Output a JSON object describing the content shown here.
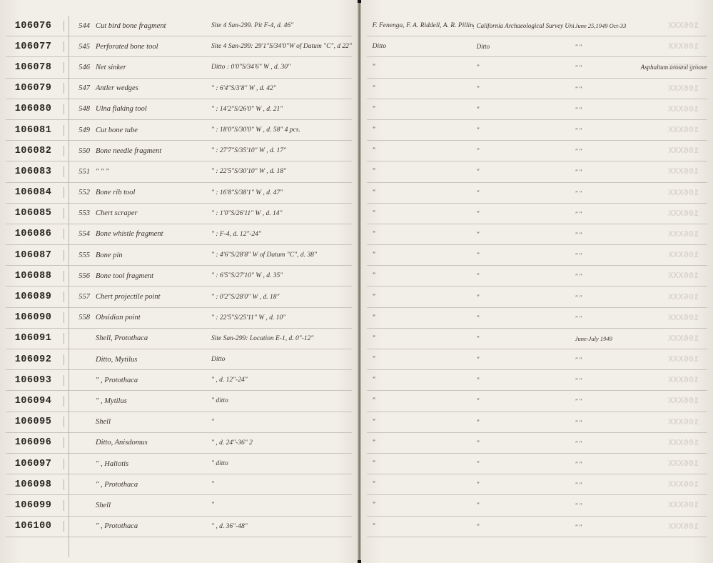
{
  "rows": [
    {
      "id": "106076",
      "num": "544",
      "desc": "Cut bird bone fragment",
      "loc": "Site 4 San-299. Pit F-4, d. 46\"",
      "rc1": "F. Fenenga, F. A. Riddell, A. R. Pilling, et al",
      "rc2": "California Archaeological Survey University Appropriation",
      "rc3": "June 25,1949 Oct-33",
      "rc4": "",
      "ghost": "106XXX"
    },
    {
      "id": "106077",
      "num": "545",
      "desc": "Perforated bone tool",
      "loc": "Site 4 San-299: 29'1\"S/34'0\"W of Datum \"C\", d 22\"",
      "rc1": "Ditto",
      "rc2": "Ditto",
      "rc3": "\"  \"",
      "rc4": "",
      "ghost": "106XXX"
    },
    {
      "id": "106078",
      "num": "546",
      "desc": "Net sinker",
      "loc": "Ditto  : 0'0\"S/34'6\" W    ,  d. 30\"",
      "rc1": "\"",
      "rc2": "\"",
      "rc3": "\"  \"",
      "rc4": "Asphaltum around groove",
      "ghost": "106XXX"
    },
    {
      "id": "106079",
      "num": "547",
      "desc": "Antler wedges",
      "loc": "\"   : 6'4\"S/3'8\" W     ,  d. 42\"",
      "rc1": "\"",
      "rc2": "\"",
      "rc3": "\"  \"",
      "rc4": "",
      "ghost": "106XXX"
    },
    {
      "id": "106080",
      "num": "548",
      "desc": "Ulna flaking tool",
      "loc": "\"   : 14'2\"S/26'0\" W    ,  d. 21\"",
      "rc1": "\"",
      "rc2": "\"",
      "rc3": "\"  \"",
      "rc4": "",
      "ghost": "106XXX"
    },
    {
      "id": "106081",
      "num": "549",
      "desc": "Cut bone tube",
      "loc": "\"   : 18'0\"S/30'0\" W    ,  d. 58\"  4 pcs.",
      "rc1": "\"",
      "rc2": "\"",
      "rc3": "\"  \"",
      "rc4": "",
      "ghost": "106XXX"
    },
    {
      "id": "106082",
      "num": "550",
      "desc": "Bone needle fragment",
      "loc": "\"   : 27'7\"S/35'10\" W   ,  d. 17\"",
      "rc1": "\"",
      "rc2": "\"",
      "rc3": "\"  \"",
      "rc4": "",
      "ghost": "106XXX"
    },
    {
      "id": "106083",
      "num": "551",
      "desc": "\"   \"   \"",
      "loc": "\"   : 22'5\"S/30'10\" W   ,  d. 18\"",
      "rc1": "\"",
      "rc2": "\"",
      "rc3": "\"  \"",
      "rc4": "",
      "ghost": "106XXX"
    },
    {
      "id": "106084",
      "num": "552",
      "desc": "Bone rib tool",
      "loc": "\"   : 16'8\"S/38'1\" W    ,  d. 47\"",
      "rc1": "\"",
      "rc2": "\"",
      "rc3": "\"  \"",
      "rc4": "",
      "ghost": "106XXX"
    },
    {
      "id": "106085",
      "num": "553",
      "desc": "Chert scraper",
      "loc": "\"   : 1'0\"S/26'11\" W    ,  d. 14\"",
      "rc1": "\"",
      "rc2": "\"",
      "rc3": "\"  \"",
      "rc4": "",
      "ghost": "106XXX"
    },
    {
      "id": "106086",
      "num": "554",
      "desc": "Bone whistle fragment",
      "loc": "\"   : F-4, d. 12\"-24\"",
      "rc1": "\"",
      "rc2": "\"",
      "rc3": "\"  \"",
      "rc4": "",
      "ghost": "106XXX"
    },
    {
      "id": "106087",
      "num": "555",
      "desc": "Bone pin",
      "loc": "\"   : 4'6\"S/28'8\" W of Datum \"C\", d. 38\"",
      "rc1": "\"",
      "rc2": "\"",
      "rc3": "\"  \"",
      "rc4": "",
      "ghost": "106XXX"
    },
    {
      "id": "106088",
      "num": "556",
      "desc": "Bone tool fragment",
      "loc": "\"   : 6'5\"S/27'10\" W    ,  d. 35\"",
      "rc1": "\"",
      "rc2": "\"",
      "rc3": "\"  \"",
      "rc4": "",
      "ghost": "106XXX"
    },
    {
      "id": "106089",
      "num": "557",
      "desc": "Chert projectile point",
      "loc": "\"   : 0'2\"S/28'0\" W    ,  d. 18\"",
      "rc1": "\"",
      "rc2": "\"",
      "rc3": "\"  \"",
      "rc4": "",
      "ghost": "106XXX"
    },
    {
      "id": "106090",
      "num": "558",
      "desc": "Obsidian point",
      "loc": "\"   : 22'5\"S/25'11\" W   ,  d. 10\"",
      "rc1": "\"",
      "rc2": "\"",
      "rc3": "\"  \"",
      "rc4": "",
      "ghost": "106XXX"
    },
    {
      "id": "106091",
      "num": "",
      "desc": "Shell, Protothaca",
      "loc": "Site San-299: Location E-1, d. 0\"-12\"",
      "rc1": "\"",
      "rc2": "\"",
      "rc3": "June-July 1949",
      "rc4": "",
      "ghost": "106XXX"
    },
    {
      "id": "106092",
      "num": "",
      "desc": "Ditto, Mytilus",
      "loc": "Ditto",
      "rc1": "\"",
      "rc2": "\"",
      "rc3": "\"  \"",
      "rc4": "",
      "ghost": "106XXX"
    },
    {
      "id": "106093",
      "num": "",
      "desc": "\" , Protothaca",
      "loc": "\"         , d. 12\"-24\"",
      "rc1": "\"",
      "rc2": "\"",
      "rc3": "\"  \"",
      "rc4": "",
      "ghost": "106XXX"
    },
    {
      "id": "106094",
      "num": "",
      "desc": "\" , Mytilus",
      "loc": "\"           ditto",
      "rc1": "\"",
      "rc2": "\"",
      "rc3": "\"  \"",
      "rc4": "",
      "ghost": "106XXX"
    },
    {
      "id": "106095",
      "num": "",
      "desc": "Shell",
      "loc": "\"",
      "rc1": "\"",
      "rc2": "\"",
      "rc3": "\"  \"",
      "rc4": "",
      "ghost": "106XXX"
    },
    {
      "id": "106096",
      "num": "",
      "desc": "Ditto, Anisdomus",
      "loc": "\"         , d. 24\"-36\"    2",
      "rc1": "\"",
      "rc2": "\"",
      "rc3": "\"  \"",
      "rc4": "",
      "ghost": "106XXX"
    },
    {
      "id": "106097",
      "num": "",
      "desc": "\" , Haliotis",
      "loc": "\"           ditto",
      "rc1": "\"",
      "rc2": "\"",
      "rc3": "\"  \"",
      "rc4": "",
      "ghost": "106XXX"
    },
    {
      "id": "106098",
      "num": "",
      "desc": "\" , Protothaca",
      "loc": "\"",
      "rc1": "\"",
      "rc2": "\"",
      "rc3": "\"  \"",
      "rc4": "",
      "ghost": "106XXX"
    },
    {
      "id": "106099",
      "num": "",
      "desc": "Shell",
      "loc": "\"",
      "rc1": "\"",
      "rc2": "\"",
      "rc3": "\"  \"",
      "rc4": "",
      "ghost": "106XXX"
    },
    {
      "id": "106100",
      "num": "",
      "desc": "\" , Protothaca",
      "loc": "\"         , d. 36\"-48\"",
      "rc1": "\"",
      "rc2": "\"",
      "rc3": "\"  \"",
      "rc4": "",
      "ghost": "106XXX"
    }
  ]
}
